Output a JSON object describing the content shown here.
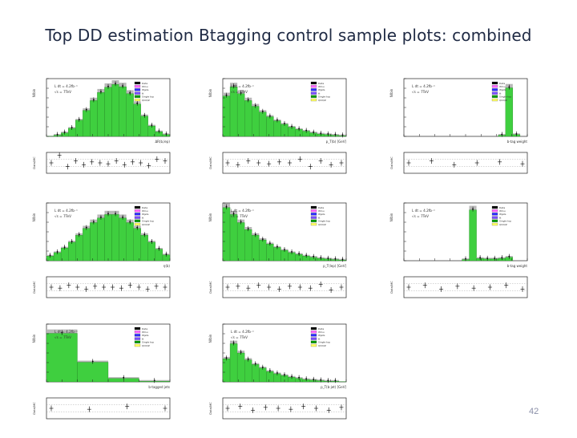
{
  "slide": {
    "title": "Top DD estimation Btagging control sample plots: combined",
    "page_number": "42"
  },
  "common": {
    "lumi_label": "L dt = 4.2fb⁻¹",
    "energy_label": "√s = 7TeV",
    "y_label": "N/bin",
    "ratio_label": "Data/MC",
    "legend_entries": [
      "Data",
      "Wlnu",
      "Wjets",
      "tt",
      "Single top",
      "QCD/Z"
    ]
  },
  "colors": {
    "signal_fill": "#3fcf3f",
    "signal_stroke": "#1f7a1f",
    "band_fill": "#b8b8b8",
    "axes": "#222222",
    "legend_swatches": [
      "#000000",
      "#ff66ff",
      "#2b2bff",
      "#7a4cff",
      "#009900",
      "#ffff66"
    ]
  },
  "chart_data": [
    {
      "type": "bar",
      "row": 0,
      "col": 0,
      "shape": "peak",
      "xlabel": "ΔR(b,lep)",
      "values": [
        0.3,
        2,
        6,
        14,
        28,
        45,
        62,
        76,
        85,
        90,
        86,
        74,
        56,
        35,
        18,
        8,
        3
      ],
      "ylim": [
        0,
        100
      ],
      "ratio": [
        1.0,
        1.4,
        0.8,
        1.1,
        0.9,
        1.05,
        1.0,
        0.95,
        1.1,
        0.9,
        1.05,
        1.0,
        0.85,
        1.2,
        1.1
      ]
    },
    {
      "type": "bar",
      "row": 0,
      "col": 1,
      "shape": "falling",
      "xlabel": "p_T(b) [GeV]",
      "values": [
        70,
        86,
        74,
        62,
        52,
        42,
        34,
        27,
        21,
        16,
        12,
        9,
        6,
        4,
        3,
        2,
        1
      ],
      "ylim": [
        0,
        100
      ],
      "ratio": [
        1.0,
        0.9,
        1.1,
        1.0,
        0.95,
        1.05,
        1.0,
        1.2,
        0.8,
        1.1,
        0.9,
        1.0
      ]
    },
    {
      "type": "bar",
      "row": 0,
      "col": 2,
      "shape": "spike",
      "xlabel": "b-tag weight",
      "values": [
        0,
        0,
        0,
        0,
        0,
        0,
        0,
        0,
        0,
        0,
        0,
        0,
        0,
        2,
        84,
        3,
        0
      ],
      "ylim": [
        0,
        100
      ],
      "ratio": [
        1.0,
        1.1,
        0.9,
        1.0,
        1.05,
        0.95
      ]
    },
    {
      "type": "bar",
      "row": 1,
      "col": 0,
      "shape": "peak",
      "xlabel": "η(b)",
      "values": [
        8,
        14,
        22,
        32,
        44,
        56,
        66,
        74,
        80,
        80,
        74,
        66,
        56,
        44,
        32,
        20,
        10
      ],
      "ylim": [
        0,
        100
      ],
      "ratio": [
        1.0,
        0.95,
        1.1,
        1.0,
        0.9,
        1.05,
        1.0,
        1.0,
        0.95,
        1.1,
        1.0,
        0.9,
        1.05,
        1.0
      ]
    },
    {
      "type": "bar",
      "row": 1,
      "col": 1,
      "shape": "falling",
      "xlabel": "p_T(lep) [GeV]",
      "values": [
        92,
        80,
        66,
        54,
        44,
        36,
        29,
        23,
        18,
        14,
        11,
        8,
        6,
        4,
        3,
        2,
        1
      ],
      "ylim": [
        0,
        100
      ],
      "ratio": [
        1.0,
        1.05,
        0.95,
        1.1,
        1.0,
        0.9,
        1.05,
        1.0,
        0.95,
        1.15,
        0.85,
        1.0
      ]
    },
    {
      "type": "bar",
      "row": 1,
      "col": 2,
      "shape": "spike",
      "xlabel": "b-tag weight",
      "values": [
        0,
        0,
        0,
        0,
        0,
        0,
        0,
        0,
        2,
        88,
        4,
        3,
        3,
        4,
        6,
        0,
        0
      ],
      "ylim": [
        0,
        100
      ],
      "ratio": [
        1.0,
        1.1,
        0.9,
        1.05,
        0.95,
        1.0,
        1.1,
        0.9
      ]
    },
    {
      "type": "bar",
      "row": 2,
      "col": 0,
      "shape": "jets",
      "xlabel": "b-tagged jets",
      "values": [
        84,
        34,
        6,
        1
      ],
      "ylim": [
        0,
        100
      ],
      "ratio": [
        1.0,
        0.95,
        1.1,
        1.0
      ]
    },
    {
      "type": "bar",
      "row": 2,
      "col": 1,
      "shape": "falling",
      "xlabel": "p_T(b-jet) [GeV]",
      "values": [
        40,
        66,
        50,
        38,
        30,
        24,
        18,
        14,
        11,
        8,
        6,
        4,
        3,
        2,
        1,
        1,
        0.5
      ],
      "ylim": [
        0,
        100
      ],
      "ratio": [
        1.0,
        1.1,
        0.9,
        1.05,
        1.0,
        0.95,
        1.1,
        1.0,
        0.9,
        1.05
      ]
    }
  ]
}
